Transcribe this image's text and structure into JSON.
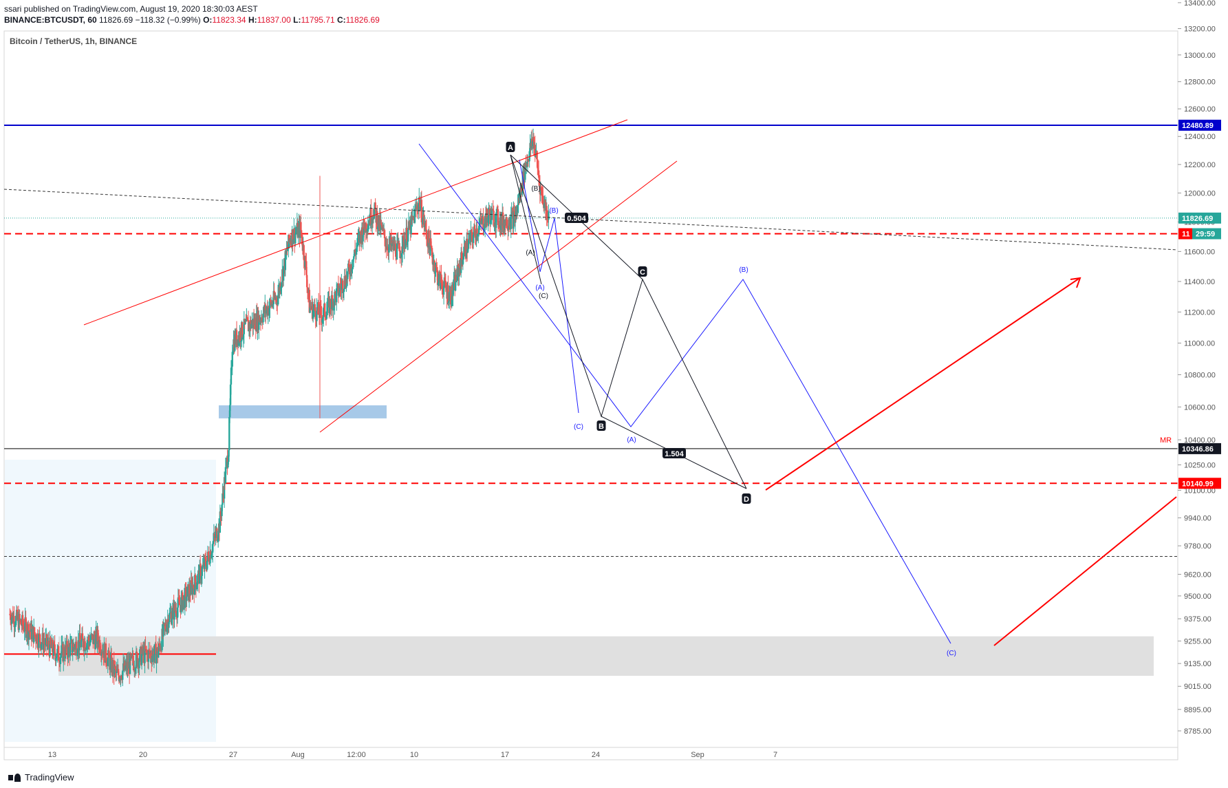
{
  "header": {
    "publish_line": "ssari published on TradingView.com, August 19, 2020 18:30:03 AEST",
    "symbol": "BINANCE:BTCUSDT, 60",
    "last": "11826.69",
    "change": "−118.32 (−0.99%)",
    "o_label": "O:",
    "o": "11823.34",
    "h_label": "H:",
    "h": "11837.00",
    "l_label": "L:",
    "l": "11795.71",
    "c_label": "C:",
    "c": "11826.69"
  },
  "footer": {
    "logo_text": "TradingView"
  },
  "colors": {
    "up": "#26a69a",
    "down": "#ef5350",
    "blue": "#1a1aff",
    "red": "#ff0000",
    "black": "#131722",
    "zone_blue": "#9dc3e6",
    "zone_grey": "#e0e0e0",
    "shade": "#f0f8fd"
  },
  "chart_data": {
    "type": "candlestick",
    "title": "Bitcoin / TetherUS, 1h, BINANCE",
    "y_scale": "log",
    "y_ticks": [
      "13400.00",
      "13200.00",
      "13000.00",
      "12800.00",
      "12600.00",
      "12400.00",
      "12200.00",
      "12000.00",
      "11800.00",
      "11600.00",
      "11400.00",
      "11200.00",
      "11000.00",
      "10800.00",
      "10600.00",
      "10400.00",
      "10250.00",
      "10100.00",
      "9940.00",
      "9780.00",
      "9620.00",
      "9500.00",
      "9375.00",
      "9255.00",
      "9135.00",
      "9015.00",
      "8895.00",
      "8785.00"
    ],
    "x_ticks": [
      "13",
      "20",
      "27",
      "Aug",
      "12:00",
      "10",
      "17",
      "24",
      "Sep",
      "7"
    ],
    "price_labels": [
      {
        "text": "12480.89",
        "price": 12480.89,
        "style": "blue"
      },
      {
        "text": "11826.69",
        "price": 11826.69,
        "style": "teal"
      },
      {
        "text": "11",
        "price": 11720,
        "style": "red"
      },
      {
        "text": "29:59",
        "price": 11720,
        "style": "teal"
      },
      {
        "text": "10346.86",
        "price": 10346.86,
        "style": "black"
      },
      {
        "text": "10140.99",
        "price": 10140.99,
        "style": "red"
      }
    ],
    "mr_label": "MR",
    "horizontal_lines": [
      {
        "price": 12480.89,
        "style": "blue-solid"
      },
      {
        "price": 11826.69,
        "style": "teal-dotted"
      },
      {
        "price": 11720,
        "style": "red-dashed"
      },
      {
        "price": 10346.86,
        "style": "black-solid"
      },
      {
        "price": 10140.99,
        "style": "red-dashed"
      },
      {
        "price": 9720,
        "style": "black-dotted"
      }
    ],
    "zones": [
      {
        "name": "demand-zone-blue",
        "x_from": "Jul 25 00:00",
        "x_to": "Aug 5 00:00",
        "price_from": 10530,
        "price_to": 10610
      },
      {
        "name": "demand-zone-grey",
        "x_from": "Jul 13 12:00",
        "x_to": "Sep 30 00:00",
        "price_from": 9070,
        "price_to": 9280
      }
    ],
    "wave_labels_black": [
      "A",
      "B",
      "C",
      "D"
    ],
    "fib_labels": [
      "0.504",
      "1.504"
    ],
    "wave_labels_small_black": [
      "(B)",
      "(A)",
      "(C)"
    ],
    "wave_labels_blue": [
      "(B)",
      "(A)",
      "(C)",
      "(B)",
      "(C)",
      "(A)"
    ]
  }
}
